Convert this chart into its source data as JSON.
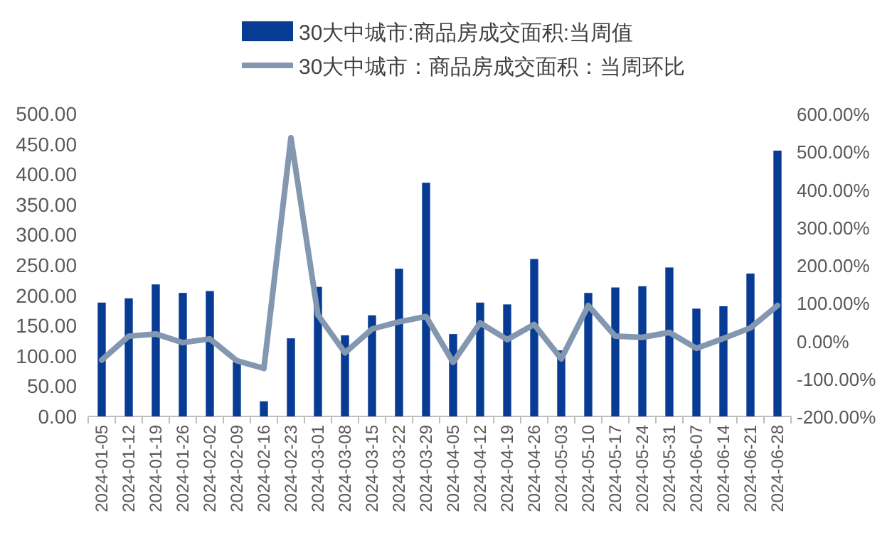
{
  "chart_data": {
    "type": "bar",
    "categories": [
      "2024-01-05",
      "2024-01-12",
      "2024-01-19",
      "2024-01-26",
      "2024-02-02",
      "2024-02-09",
      "2024-02-16",
      "2024-02-23",
      "2024-03-01",
      "2024-03-08",
      "2024-03-15",
      "2024-03-22",
      "2024-03-29",
      "2024-04-05",
      "2024-04-12",
      "2024-04-19",
      "2024-04-26",
      "2024-05-03",
      "2024-05-10",
      "2024-05-17",
      "2024-05-24",
      "2024-05-31",
      "2024-06-07",
      "2024-06-14",
      "2024-06-21",
      "2024-06-28"
    ],
    "series": [
      {
        "name": "30大中城市:商品房成交面积:当周值",
        "color": "#083c94",
        "values": [
          188,
          195,
          218,
          204,
          207,
          90,
          25,
          129,
          214,
          134,
          167,
          244,
          386,
          136,
          188,
          185,
          260,
          109,
          204,
          213,
          215,
          246,
          178,
          182,
          236,
          439
        ]
      },
      {
        "name": "30大中城市：商品房成交面积：当周环比",
        "type": "line",
        "axis": "y2",
        "color": "#8497b0",
        "values": [
          -51,
          12,
          18,
          -5,
          5,
          -53,
          -73,
          536,
          68,
          -32,
          31,
          50,
          64,
          -57,
          47,
          3,
          43,
          -48,
          93,
          12,
          9,
          22,
          -20,
          6,
          34,
          93
        ]
      }
    ],
    "ylim": [
      0,
      500
    ],
    "yticks": [
      {
        "value": 0,
        "label": "0.00"
      },
      {
        "value": 50,
        "label": "50.00"
      },
      {
        "value": 100,
        "label": "100.00"
      },
      {
        "value": 150,
        "label": "150.00"
      },
      {
        "value": 200,
        "label": "200.00"
      },
      {
        "value": 250,
        "label": "250.00"
      },
      {
        "value": 300,
        "label": "300.00"
      },
      {
        "value": 350,
        "label": "350.00"
      },
      {
        "value": 400,
        "label": "400.00"
      },
      {
        "value": 450,
        "label": "450.00"
      },
      {
        "value": 500,
        "label": "500.00"
      }
    ],
    "y2lim": [
      -200,
      600
    ],
    "y2ticks": [
      {
        "value": -200,
        "label": "-200.00%"
      },
      {
        "value": -100,
        "label": "-100.00%"
      },
      {
        "value": 0,
        "label": "0.00%"
      },
      {
        "value": 100,
        "label": "100.00%"
      },
      {
        "value": 200,
        "label": "200.00%"
      },
      {
        "value": 300,
        "label": "300.00%"
      },
      {
        "value": 400,
        "label": "400.00%"
      },
      {
        "value": 500,
        "label": "500.00%"
      },
      {
        "value": 600,
        "label": "600.00%"
      }
    ],
    "grid": false,
    "legend": "top",
    "line_style": "solid",
    "marker": "none"
  }
}
